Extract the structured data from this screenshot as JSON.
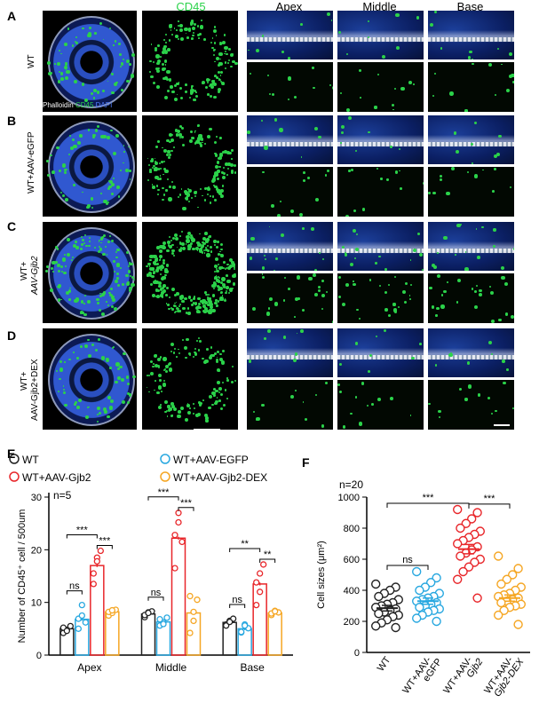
{
  "panel_letters": [
    "A",
    "B",
    "C",
    "D",
    "E",
    "F"
  ],
  "row_labels": [
    "WT",
    "WT+AAV-eGFP",
    "WT+",
    "AAV-Gjb2",
    "WT+",
    "AAV-Gjb2+DEX"
  ],
  "column_headers": {
    "cd45": "CD45",
    "apex": "Apex",
    "middle": "Middle",
    "base": "Base"
  },
  "stain_legend": {
    "phalloidin": "Phalloidin",
    "cd45": "CD45",
    "dapi": "DAPI"
  },
  "colors": {
    "wt": "#222222",
    "egfp": "#29a8e0",
    "gjb2": "#e8262a",
    "dex": "#f5a623",
    "cd45_green": "#2bd24a"
  },
  "chart_data": [
    {
      "type": "bar",
      "panel": "E",
      "ylabel": "Number of CD45⁺ cell / 500um",
      "ylim": [
        0,
        30
      ],
      "yticks": [
        "0",
        "10",
        "20",
        "30"
      ],
      "n_label": "n=5",
      "categories": [
        "Apex",
        "Middle",
        "Base"
      ],
      "series": [
        {
          "name": "WT",
          "color": "#222222",
          "values": [
            5.0,
            7.8,
            6.2
          ],
          "points": [
            [
              4.2,
              4.8,
              5.5,
              5.2,
              4.6
            ],
            [
              7.2,
              8.1,
              8.3,
              7.6,
              8.0
            ],
            [
              5.8,
              6.5,
              6.9,
              5.6,
              6.3
            ]
          ]
        },
        {
          "name": "WT+AAV-EGFP",
          "color": "#29a8e0",
          "values": [
            6.8,
            6.3,
            5.0
          ],
          "points": [
            [
              5.0,
              9.5,
              6.2,
              6.9,
              7.5
            ],
            [
              5.6,
              6.2,
              7.1,
              6.8,
              5.9
            ],
            [
              4.3,
              5.8,
              5.1,
              4.4,
              5.6
            ]
          ]
        },
        {
          "name": "WT+AAV-Gjb2",
          "color": "#e8262a",
          "values": [
            17.0,
            22.2,
            13.5
          ],
          "points": [
            [
              13.5,
              18.5,
              19.8,
              15.5,
              17.8
            ],
            [
              16.5,
              25.2,
              21.5,
              22.8,
              27.0
            ],
            [
              9.5,
              15.5,
              17.2,
              13.8,
              12.0
            ]
          ]
        },
        {
          "name": "WT+AAV-Gjb2-DEX",
          "color": "#f5a623",
          "values": [
            8.2,
            8.0,
            8.0
          ],
          "points": [
            [
              7.5,
              8.0,
              8.6,
              8.2,
              8.5
            ],
            [
              4.2,
              6.5,
              10.5,
              11.2,
              8.2
            ],
            [
              7.6,
              8.4,
              8.1,
              7.9,
              8.3
            ]
          ]
        }
      ],
      "significance": [
        {
          "group": 0,
          "from": 0,
          "to": 2,
          "label": "***"
        },
        {
          "group": 0,
          "from": 2,
          "to": 3,
          "label": "***"
        },
        {
          "group": 0,
          "from": 0,
          "to": 1,
          "label": "ns"
        },
        {
          "group": 1,
          "from": 0,
          "to": 2,
          "label": "***"
        },
        {
          "group": 1,
          "from": 2,
          "to": 3,
          "label": "***"
        },
        {
          "group": 1,
          "from": 0,
          "to": 1,
          "label": "ns"
        },
        {
          "group": 2,
          "from": 0,
          "to": 2,
          "label": "**"
        },
        {
          "group": 2,
          "from": 2,
          "to": 3,
          "label": "**"
        },
        {
          "group": 2,
          "from": 0,
          "to": 1,
          "label": "ns"
        }
      ]
    },
    {
      "type": "scatter",
      "panel": "F",
      "ylabel": "Cell sizes (μm²)",
      "ylim": [
        0,
        1000
      ],
      "yticks": [
        "0",
        "200",
        "400",
        "600",
        "800",
        "1000"
      ],
      "n_label": "n=20",
      "categories": [
        "WT",
        "WT+AAV-eGFP",
        "WT+AAV-Gjb2",
        "WT+AAV-Gjb2-DEX"
      ],
      "series": [
        {
          "name": "WT",
          "color": "#222222",
          "mean": 285,
          "sem": 18,
          "values": [
            440,
            420,
            400,
            380,
            360,
            340,
            320,
            310,
            300,
            290,
            280,
            270,
            260,
            250,
            240,
            230,
            210,
            190,
            170,
            160
          ]
        },
        {
          "name": "WT+AAV-eGFP",
          "color": "#29a8e0",
          "mean": 330,
          "sem": 20,
          "values": [
            520,
            480,
            450,
            420,
            400,
            380,
            360,
            350,
            340,
            330,
            320,
            310,
            300,
            290,
            280,
            270,
            260,
            240,
            220,
            200
          ]
        },
        {
          "name": "WT+AAV-Gjb2",
          "color": "#e8262a",
          "mean": 665,
          "sem": 30,
          "values": [
            920,
            900,
            860,
            830,
            800,
            780,
            760,
            740,
            720,
            700,
            680,
            660,
            640,
            620,
            600,
            580,
            550,
            520,
            470,
            350
          ]
        },
        {
          "name": "WT+AAV-Gjb2-DEX",
          "color": "#f5a623",
          "mean": 350,
          "sem": 20,
          "values": [
            620,
            540,
            500,
            470,
            440,
            420,
            400,
            380,
            370,
            360,
            350,
            340,
            330,
            320,
            310,
            300,
            290,
            270,
            240,
            180
          ]
        }
      ],
      "significance": [
        {
          "from": 0,
          "to": 2,
          "label": "***"
        },
        {
          "from": 2,
          "to": 3,
          "label": "***"
        },
        {
          "from": 0,
          "to": 1,
          "label": "ns"
        }
      ]
    }
  ]
}
